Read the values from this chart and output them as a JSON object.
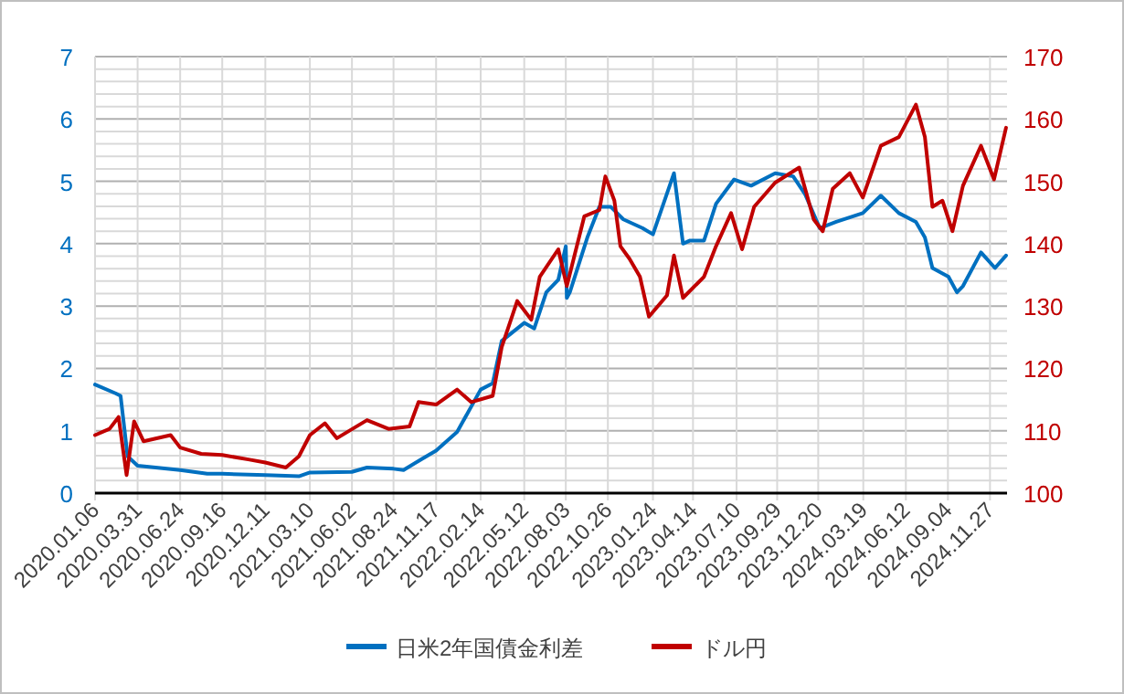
{
  "chart_data": {
    "type": "line",
    "xlim": [
      "2020-01-06",
      "2024-12-31"
    ],
    "xticks": [
      {
        "value": "2020-01-06",
        "label": "2020.01.06"
      },
      {
        "value": "2020-03-31",
        "label": "2020.03.31"
      },
      {
        "value": "2020-06-24",
        "label": "2020.06.24"
      },
      {
        "value": "2020-09-16",
        "label": "2020.09.16"
      },
      {
        "value": "2020-12-11",
        "label": "2020.12.11"
      },
      {
        "value": "2021-03-10",
        "label": "2021.03.10"
      },
      {
        "value": "2021-06-02",
        "label": "2021.06.02"
      },
      {
        "value": "2021-08-24",
        "label": "2021.08.24"
      },
      {
        "value": "2021-11-17",
        "label": "2021.11.17"
      },
      {
        "value": "2022-02-14",
        "label": "2022.02.14"
      },
      {
        "value": "2022-05-12",
        "label": "2022.05.12"
      },
      {
        "value": "2022-08-03",
        "label": "2022.08.03"
      },
      {
        "value": "2022-10-26",
        "label": "2022.10.26"
      },
      {
        "value": "2023-01-24",
        "label": "2023.01.24"
      },
      {
        "value": "2023-04-14",
        "label": "2023.04.14"
      },
      {
        "value": "2023-07-10",
        "label": "2023.07.10"
      },
      {
        "value": "2023-09-29",
        "label": "2023.09.29"
      },
      {
        "value": "2023-12-20",
        "label": "2023.12.20"
      },
      {
        "value": "2024-03-19",
        "label": "2024.03.19"
      },
      {
        "value": "2024-06-12",
        "label": "2024.06.12"
      },
      {
        "value": "2024-09-04",
        "label": "2024.09.04"
      },
      {
        "value": "2024-11-27",
        "label": "2024.11.27"
      }
    ],
    "ylim": [
      0,
      7
    ],
    "yticks": [
      0,
      {
        "value": 0.2,
        "label": null
      },
      {
        "value": 0.4,
        "label": null
      },
      {
        "value": 0.6,
        "label": null
      },
      {
        "value": 0.8,
        "label": null
      },
      1,
      {
        "value": 1.2,
        "label": null
      },
      {
        "value": 1.4,
        "label": null
      },
      {
        "value": 1.6,
        "label": null
      },
      {
        "value": 1.8,
        "label": null
      },
      2,
      {
        "value": 2.2,
        "label": null
      },
      {
        "value": 2.4,
        "label": null
      },
      {
        "value": 2.6,
        "label": null
      },
      {
        "value": 2.8,
        "label": null
      },
      3,
      {
        "value": 3.2,
        "label": null
      },
      {
        "value": 3.4,
        "label": null
      },
      {
        "value": 3.6,
        "label": null
      },
      {
        "value": 3.8,
        "label": null
      },
      4,
      {
        "value": 4.2,
        "label": null
      },
      {
        "value": 4.4,
        "label": null
      },
      {
        "value": 4.6,
        "label": null
      },
      {
        "value": 4.8,
        "label": null
      },
      5,
      {
        "value": 5.2,
        "label": null
      },
      {
        "value": 5.4,
        "label": null
      },
      {
        "value": 5.6,
        "label": null
      },
      {
        "value": 5.8,
        "label": null
      },
      6,
      {
        "value": 6.2,
        "label": null
      },
      {
        "value": 6.4,
        "label": null
      },
      {
        "value": 6.6,
        "label": null
      },
      {
        "value": 6.8,
        "label": null
      },
      7
    ],
    "y2lim": [
      100,
      170
    ],
    "y2ticks": [
      100,
      110,
      120,
      130,
      140,
      150,
      160,
      170
    ],
    "grid": true,
    "legend": "bottom",
    "series": [
      {
        "name": "日米2年国債金利差",
        "color": "#0070c0",
        "x": [
          "2020-01-06",
          "2020-02-16",
          "2020-02-26",
          "2020-03-11",
          "2020-03-31",
          "2020-06-24",
          "2020-08-17",
          "2020-09-16",
          "2020-12-11",
          "2021-02-16",
          "2021-03-10",
          "2021-06-02",
          "2021-07-02",
          "2021-08-24",
          "2021-09-13",
          "2021-10-20",
          "2021-11-17",
          "2021-12-29",
          "2022-02-14",
          "2022-03-10",
          "2022-03-28",
          "2022-05-12",
          "2022-06-01",
          "2022-06-25",
          "2022-07-19",
          "2022-08-03",
          "2022-08-05",
          "2022-08-11",
          "2022-09-15",
          "2022-10-09",
          "2022-11-01",
          "2022-11-26",
          "2023-01-03",
          "2023-01-24",
          "2023-03-07",
          "2023-03-25",
          "2023-04-08",
          "2023-05-06",
          "2023-05-30",
          "2023-07-05",
          "2023-08-08",
          "2023-09-25",
          "2023-10-31",
          "2023-11-24",
          "2023-12-23",
          "2024-01-25",
          "2024-03-18",
          "2024-04-23",
          "2024-05-29",
          "2024-07-02",
          "2024-07-20",
          "2024-08-04",
          "2024-09-05",
          "2024-09-22",
          "2024-10-04",
          "2024-11-09",
          "2024-12-07",
          "2024-12-29"
        ],
        "values": [
          1.74,
          1.6,
          1.56,
          0.59,
          0.44,
          0.37,
          0.31,
          0.31,
          0.29,
          0.27,
          0.33,
          0.34,
          0.41,
          0.39,
          0.37,
          0.55,
          0.68,
          0.98,
          1.66,
          1.76,
          2.44,
          2.73,
          2.64,
          3.22,
          3.42,
          3.96,
          3.13,
          3.22,
          4.1,
          4.59,
          4.59,
          4.39,
          4.25,
          4.15,
          5.13,
          4.0,
          4.05,
          4.05,
          4.64,
          5.03,
          4.93,
          5.13,
          5.08,
          4.79,
          4.25,
          4.35,
          4.49,
          4.77,
          4.49,
          4.35,
          4.1,
          3.61,
          3.47,
          3.22,
          3.32,
          3.86,
          3.61,
          3.81
        ]
      },
      {
        "name": "ドル円",
        "color": "#c00000",
        "axis": "y2",
        "x": [
          "2020-01-06",
          "2020-02-04",
          "2020-02-22",
          "2020-03-09",
          "2020-03-24",
          "2020-04-12",
          "2020-06-05",
          "2020-06-24",
          "2020-08-05",
          "2020-09-16",
          "2020-11-07",
          "2020-12-11",
          "2021-01-21",
          "2021-02-16",
          "2021-03-10",
          "2021-04-09",
          "2021-05-03",
          "2021-07-02",
          "2021-08-14",
          "2021-09-25",
          "2021-10-13",
          "2021-11-17",
          "2021-12-29",
          "2022-01-26",
          "2022-03-10",
          "2022-03-28",
          "2022-04-28",
          "2022-05-26",
          "2022-06-12",
          "2022-07-19",
          "2022-08-05",
          "2022-09-09",
          "2022-10-09",
          "2022-10-21",
          "2022-11-08",
          "2022-11-20",
          "2022-12-08",
          "2022-12-29",
          "2023-01-16",
          "2023-02-21",
          "2023-03-07",
          "2023-03-25",
          "2023-05-06",
          "2023-05-30",
          "2023-06-29",
          "2023-07-21",
          "2023-08-14",
          "2023-09-25",
          "2023-11-12",
          "2023-12-11",
          "2023-12-29",
          "2024-01-18",
          "2024-02-21",
          "2024-03-18",
          "2024-04-23",
          "2024-05-29",
          "2024-07-02",
          "2024-07-20",
          "2024-08-04",
          "2024-08-24",
          "2024-09-13",
          "2024-10-04",
          "2024-11-09",
          "2024-12-05",
          "2024-12-29"
        ],
        "values": [
          109.3,
          110.3,
          112.2,
          102.9,
          111.5,
          108.3,
          109.3,
          107.3,
          106.3,
          106.1,
          105.4,
          104.9,
          104.1,
          105.9,
          109.3,
          111.2,
          108.8,
          111.7,
          110.3,
          110.7,
          114.6,
          114.2,
          116.6,
          114.6,
          115.6,
          123.4,
          130.8,
          127.8,
          134.7,
          139.1,
          133.2,
          144.4,
          145.4,
          150.8,
          146.9,
          139.6,
          137.6,
          134.7,
          128.3,
          131.7,
          138.1,
          131.3,
          134.7,
          139.6,
          144.9,
          139.1,
          145.9,
          149.8,
          152.2,
          143.9,
          142.0,
          148.8,
          151.3,
          147.4,
          155.7,
          157.1,
          162.3,
          157.1,
          145.9,
          146.9,
          142.0,
          149.3,
          155.7,
          150.3,
          158.6
        ]
      }
    ]
  }
}
